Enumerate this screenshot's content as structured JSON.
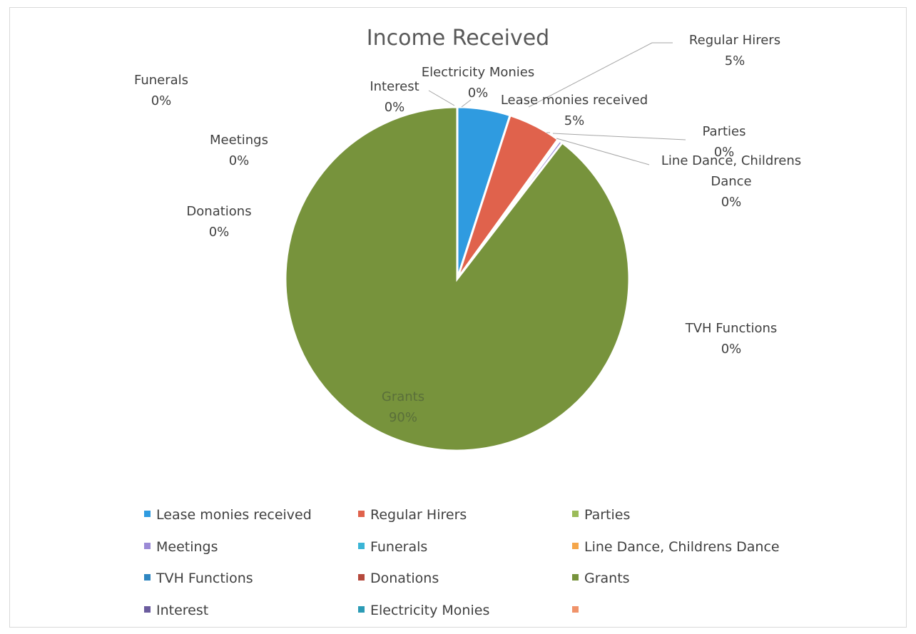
{
  "chart_data": {
    "type": "pie",
    "title": "Income Received",
    "slices": [
      {
        "name": "Lease monies received",
        "value": 5,
        "label_pct": "5%",
        "color": "#2f9be0"
      },
      {
        "name": "Regular Hirers",
        "value": 5,
        "label_pct": "5%",
        "color": "#e0624c"
      },
      {
        "name": "Parties",
        "value": 0.2,
        "label_pct": "0%",
        "color": "#9bbb59"
      },
      {
        "name": "Meetings",
        "value": 0.3,
        "label_pct": "0%",
        "color": "#9b8ad6"
      },
      {
        "name": "Funerals",
        "value": 0,
        "label_pct": "0%",
        "color": "#3bb5d6"
      },
      {
        "name": "Line Dance, Childrens Dance",
        "value": 0,
        "label_pct": "0%",
        "color": "#f5a64a"
      },
      {
        "name": "TVH Functions",
        "value": 0,
        "label_pct": "0%",
        "color": "#2e86c1"
      },
      {
        "name": "Donations",
        "value": 0,
        "label_pct": "0%",
        "color": "#b5493c"
      },
      {
        "name": "Grants",
        "value": 90,
        "label_pct": "90%",
        "color": "#77933c"
      },
      {
        "name": "Interest",
        "value": 0,
        "label_pct": "0%",
        "color": "#6b5c9e"
      },
      {
        "name": "Electricity Monies",
        "value": 0,
        "label_pct": "0%",
        "color": "#2b9bb5"
      },
      {
        "name": "",
        "value": 0,
        "label_pct": "",
        "color": "#f0936a"
      }
    ],
    "legend_position": "bottom"
  }
}
